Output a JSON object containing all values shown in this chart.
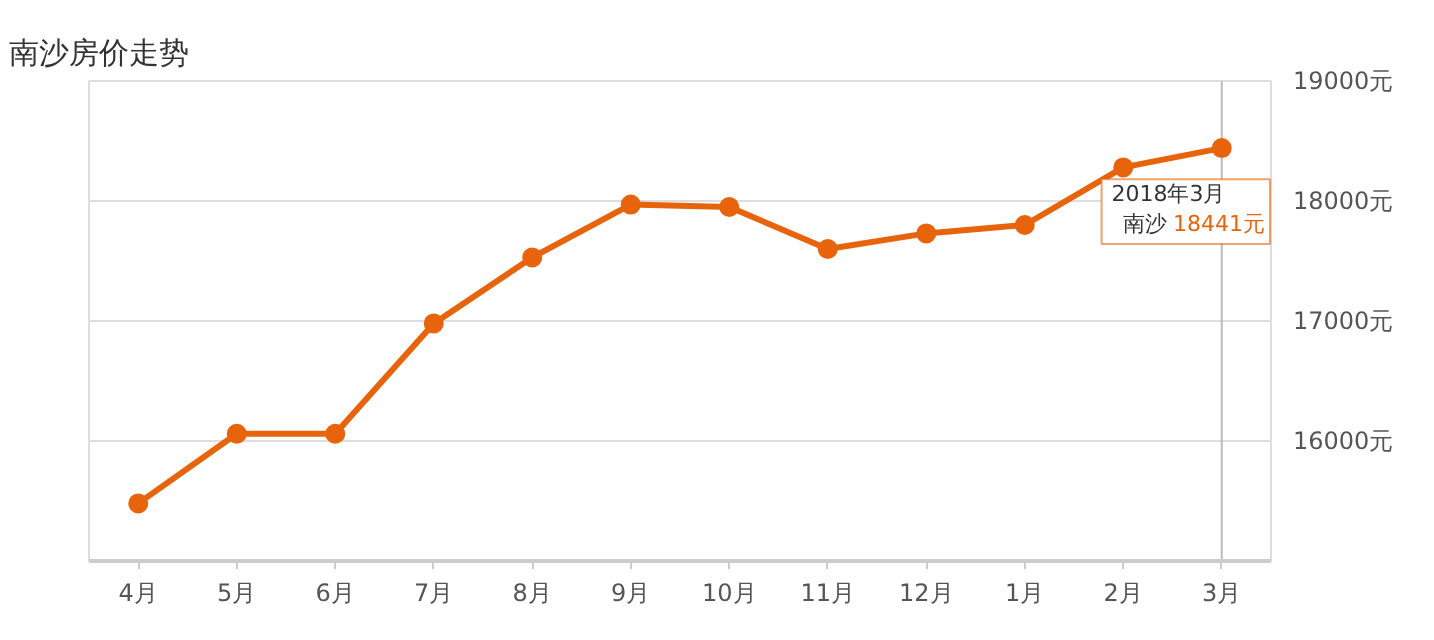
{
  "chart_data": {
    "type": "line",
    "title": "南沙房价走势",
    "categories": [
      "4月",
      "5月",
      "6月",
      "7月",
      "8月",
      "9月",
      "10月",
      "11月",
      "12月",
      "1月",
      "2月",
      "3月"
    ],
    "series": [
      {
        "name": "南沙",
        "color": "#e8640c",
        "values": [
          15480,
          16060,
          16060,
          16980,
          17530,
          17970,
          17950,
          17600,
          17730,
          17800,
          18280,
          18441
        ],
        "value_labels": [
          null,
          null,
          null,
          null,
          null,
          null,
          null,
          null,
          null,
          null,
          null,
          "18441元"
        ]
      }
    ],
    "ylim": [
      15000,
      19000
    ],
    "yticks": [
      {
        "value": 15000,
        "label": null
      },
      {
        "value": 16000,
        "label": "16000元"
      },
      {
        "value": 17000,
        "label": "17000元"
      },
      {
        "value": 18000,
        "label": "18000元"
      },
      {
        "value": 19000,
        "label": "19000元"
      }
    ],
    "grid": "y",
    "marker": "circle",
    "line_style": "solid",
    "legend": false,
    "ref_lines": [
      {
        "axis": "x",
        "value": "3月",
        "color": "#bbbbbb"
      }
    ],
    "annotations": [
      {
        "text": "2018年3月",
        "x": "3月",
        "y": 18441
      }
    ]
  }
}
